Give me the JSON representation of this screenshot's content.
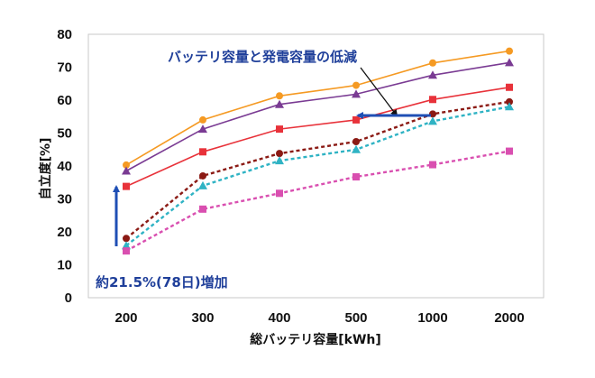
{
  "chart_data": {
    "type": "line",
    "categories": [
      "200",
      "300",
      "400",
      "500",
      "1000",
      "2000"
    ],
    "xlabel": "総バッテリ容量[kWh]",
    "ylabel": "自立度[%]",
    "ylim": [
      0,
      80
    ],
    "yticks": [
      "0",
      "10",
      "20",
      "30",
      "40",
      "50",
      "60",
      "70",
      "80"
    ],
    "grid": false,
    "series": [
      {
        "values": [
          40.3,
          54.0,
          61.3,
          64.5,
          71.3,
          74.9
        ],
        "color": "#f59a23",
        "marker": "circle",
        "dashed": false
      },
      {
        "values": [
          38.5,
          51.2,
          58.7,
          61.8,
          67.6,
          71.4
        ],
        "color": "#7a3b93",
        "marker": "triangle",
        "dashed": false
      },
      {
        "values": [
          33.8,
          44.3,
          51.2,
          54.0,
          60.2,
          63.9
        ],
        "color": "#e8323a",
        "marker": "square",
        "dashed": false
      },
      {
        "values": [
          18.0,
          37.0,
          43.8,
          47.4,
          55.8,
          59.5
        ],
        "color": "#8b1a14",
        "marker": "circle",
        "dashed": true
      },
      {
        "values": [
          15.8,
          34.0,
          41.6,
          45.0,
          53.6,
          58.0
        ],
        "color": "#2fb3c4",
        "marker": "triangle",
        "dashed": true
      },
      {
        "values": [
          14.2,
          26.9,
          31.7,
          36.7,
          40.4,
          44.5
        ],
        "color": "#d94fb0",
        "marker": "square",
        "dashed": true
      }
    ],
    "annotations": {
      "top_text": "バッテリ容量と発電容量の低減",
      "bottom_text": "約21.5%(78日)増加",
      "text_color": "#1f3f9a",
      "arrow_color": "#1f4fb5"
    }
  }
}
